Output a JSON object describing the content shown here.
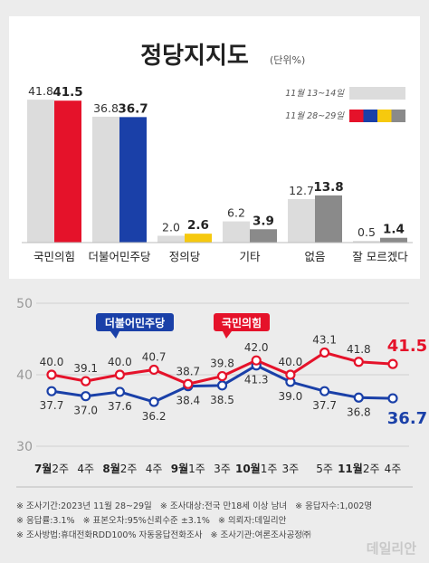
{
  "chart_data": [
    {
      "type": "bar",
      "title": "정당지지도",
      "subtitle": "(단위%)",
      "legend": [
        {
          "label": "11월 13~14일",
          "colors": [
            "#dcdcdc"
          ]
        },
        {
          "label": "11월 28~29일",
          "colors": [
            "#e5122a",
            "#1a40a8",
            "#f6c90e",
            "#8a8a8a"
          ]
        }
      ],
      "categories": [
        "국민의힘",
        "더불어민주당",
        "정의당",
        "기타",
        "없음",
        "잘 모르겠다"
      ],
      "series": [
        {
          "name": "11월 13~14일",
          "values": [
            41.8,
            36.8,
            2.0,
            6.2,
            12.7,
            0.5
          ],
          "color": "#dcdcdc"
        },
        {
          "name": "11월 28~29일",
          "values": [
            41.5,
            36.7,
            2.6,
            3.9,
            13.8,
            1.4
          ],
          "colors": [
            "#e5122a",
            "#1a40a8",
            "#f6c90e",
            "#8a8a8a",
            "#8a8a8a",
            "#8a8a8a"
          ]
        }
      ],
      "ylim": [
        0,
        45
      ]
    },
    {
      "type": "line",
      "ylim": [
        30,
        50
      ],
      "yticks": [
        "30",
        "40",
        "50"
      ],
      "x_labels": [
        {
          "main": "7월",
          "sub": "2주"
        },
        {
          "main": "",
          "sub": "4주"
        },
        {
          "main": "8월",
          "sub": "2주"
        },
        {
          "main": "",
          "sub": "4주"
        },
        {
          "main": "9월",
          "sub": "1주"
        },
        {
          "main": "",
          "sub": "3주"
        },
        {
          "main": "10월",
          "sub": "1주"
        },
        {
          "main": "",
          "sub": "3주"
        },
        {
          "main": "",
          "sub": "5주"
        },
        {
          "main": "11월",
          "sub": "2주"
        },
        {
          "main": "",
          "sub": "4주"
        }
      ],
      "series": [
        {
          "name": "국민의힘",
          "color": "#e5122a",
          "values": [
            40.0,
            39.1,
            40.0,
            40.7,
            38.7,
            39.8,
            42.0,
            40.0,
            43.1,
            41.8,
            41.5
          ],
          "labels": [
            "40.0",
            "39.1",
            "40.0",
            "40.7",
            "38.7",
            "39.8",
            "42.0",
            "40.0",
            "43.1",
            "41.8",
            "41.5"
          ]
        },
        {
          "name": "더불어민주당",
          "color": "#1a40a8",
          "values": [
            37.7,
            37.0,
            37.6,
            36.2,
            38.4,
            38.5,
            41.3,
            39.0,
            37.7,
            36.8,
            36.7
          ],
          "labels": [
            "37.7",
            "37.0",
            "37.6",
            "36.2",
            "38.4",
            "38.5",
            "41.3",
            "39.0",
            "37.7",
            "36.8",
            "36.7"
          ]
        }
      ]
    }
  ],
  "footer": {
    "row1": [
      "※ 조사기간:2023년 11월 28~29일",
      "※ 조사대상:전국 만18세 이상 남녀",
      "※ 응답자수:1,002명"
    ],
    "row2": [
      "※ 응답률:3.1%",
      "※ 표본오차:95%신뢰수준 ±3.1%",
      "※ 의뢰자:데일리안"
    ],
    "row3": [
      "※ 조사방법:휴대전화RDD100% 자동응답전화조사",
      "※ 조사기관:여론조사공정㈜"
    ]
  },
  "watermark": "데일리안"
}
